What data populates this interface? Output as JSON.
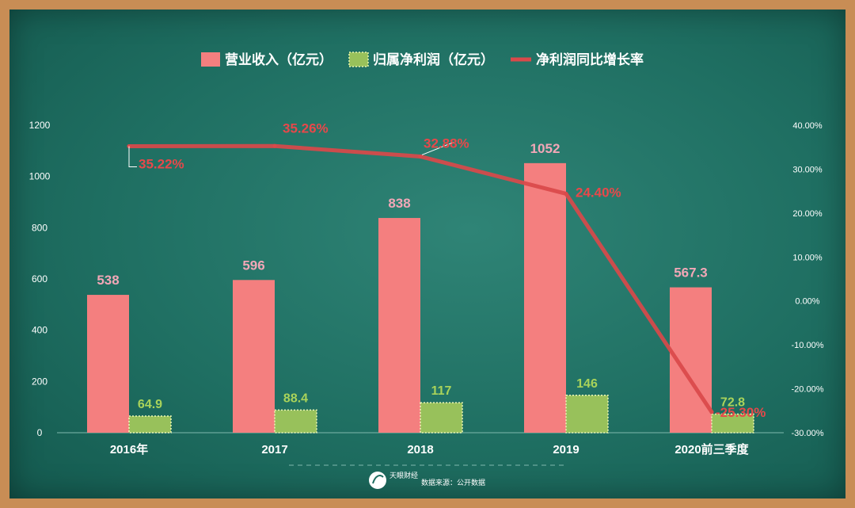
{
  "chart_data": {
    "type": "bar",
    "categories": [
      "2016年",
      "2017",
      "2018",
      "2019",
      "2020前三季度"
    ],
    "series": [
      {
        "name": "营业收入（亿元）",
        "type": "bar",
        "axis": "left",
        "values": [
          538,
          596,
          838,
          1052,
          567.3
        ],
        "labels": [
          "538",
          "596",
          "838",
          "1052",
          "567.3"
        ],
        "color": "#f47f7f"
      },
      {
        "name": "归属净利润（亿元）",
        "type": "bar",
        "axis": "left",
        "values": [
          64.9,
          88.4,
          117,
          146,
          72.8
        ],
        "labels": [
          "64.9",
          "88.4",
          "117",
          "146",
          "72.8"
        ],
        "color": "#98c15b"
      },
      {
        "name": "净利润同比增长率",
        "type": "line",
        "axis": "right",
        "values": [
          35.22,
          35.26,
          32.88,
          24.4,
          -25.3
        ],
        "labels": [
          "35.22%",
          "35.26%",
          "32.88%",
          "24.40%",
          "-25.30%"
        ],
        "color": "#d9494a"
      }
    ],
    "y_left": {
      "ylim": [
        0,
        1200
      ],
      "ticks": [
        "0",
        "200",
        "400",
        "600",
        "800",
        "1000",
        "1200"
      ]
    },
    "y_right": {
      "ylim": [
        -30,
        40
      ],
      "ticks": [
        "-30.00%",
        "-20.00%",
        "-10.00%",
        "0.00%",
        "10.00%",
        "20.00%",
        "30.00%",
        "40.00%"
      ]
    },
    "legend": "top-center",
    "grid": false,
    "title": "",
    "xlabel": "",
    "ylabel": ""
  },
  "footer": {
    "brand": "天眼财经",
    "source": "数据来源：公开数据"
  }
}
